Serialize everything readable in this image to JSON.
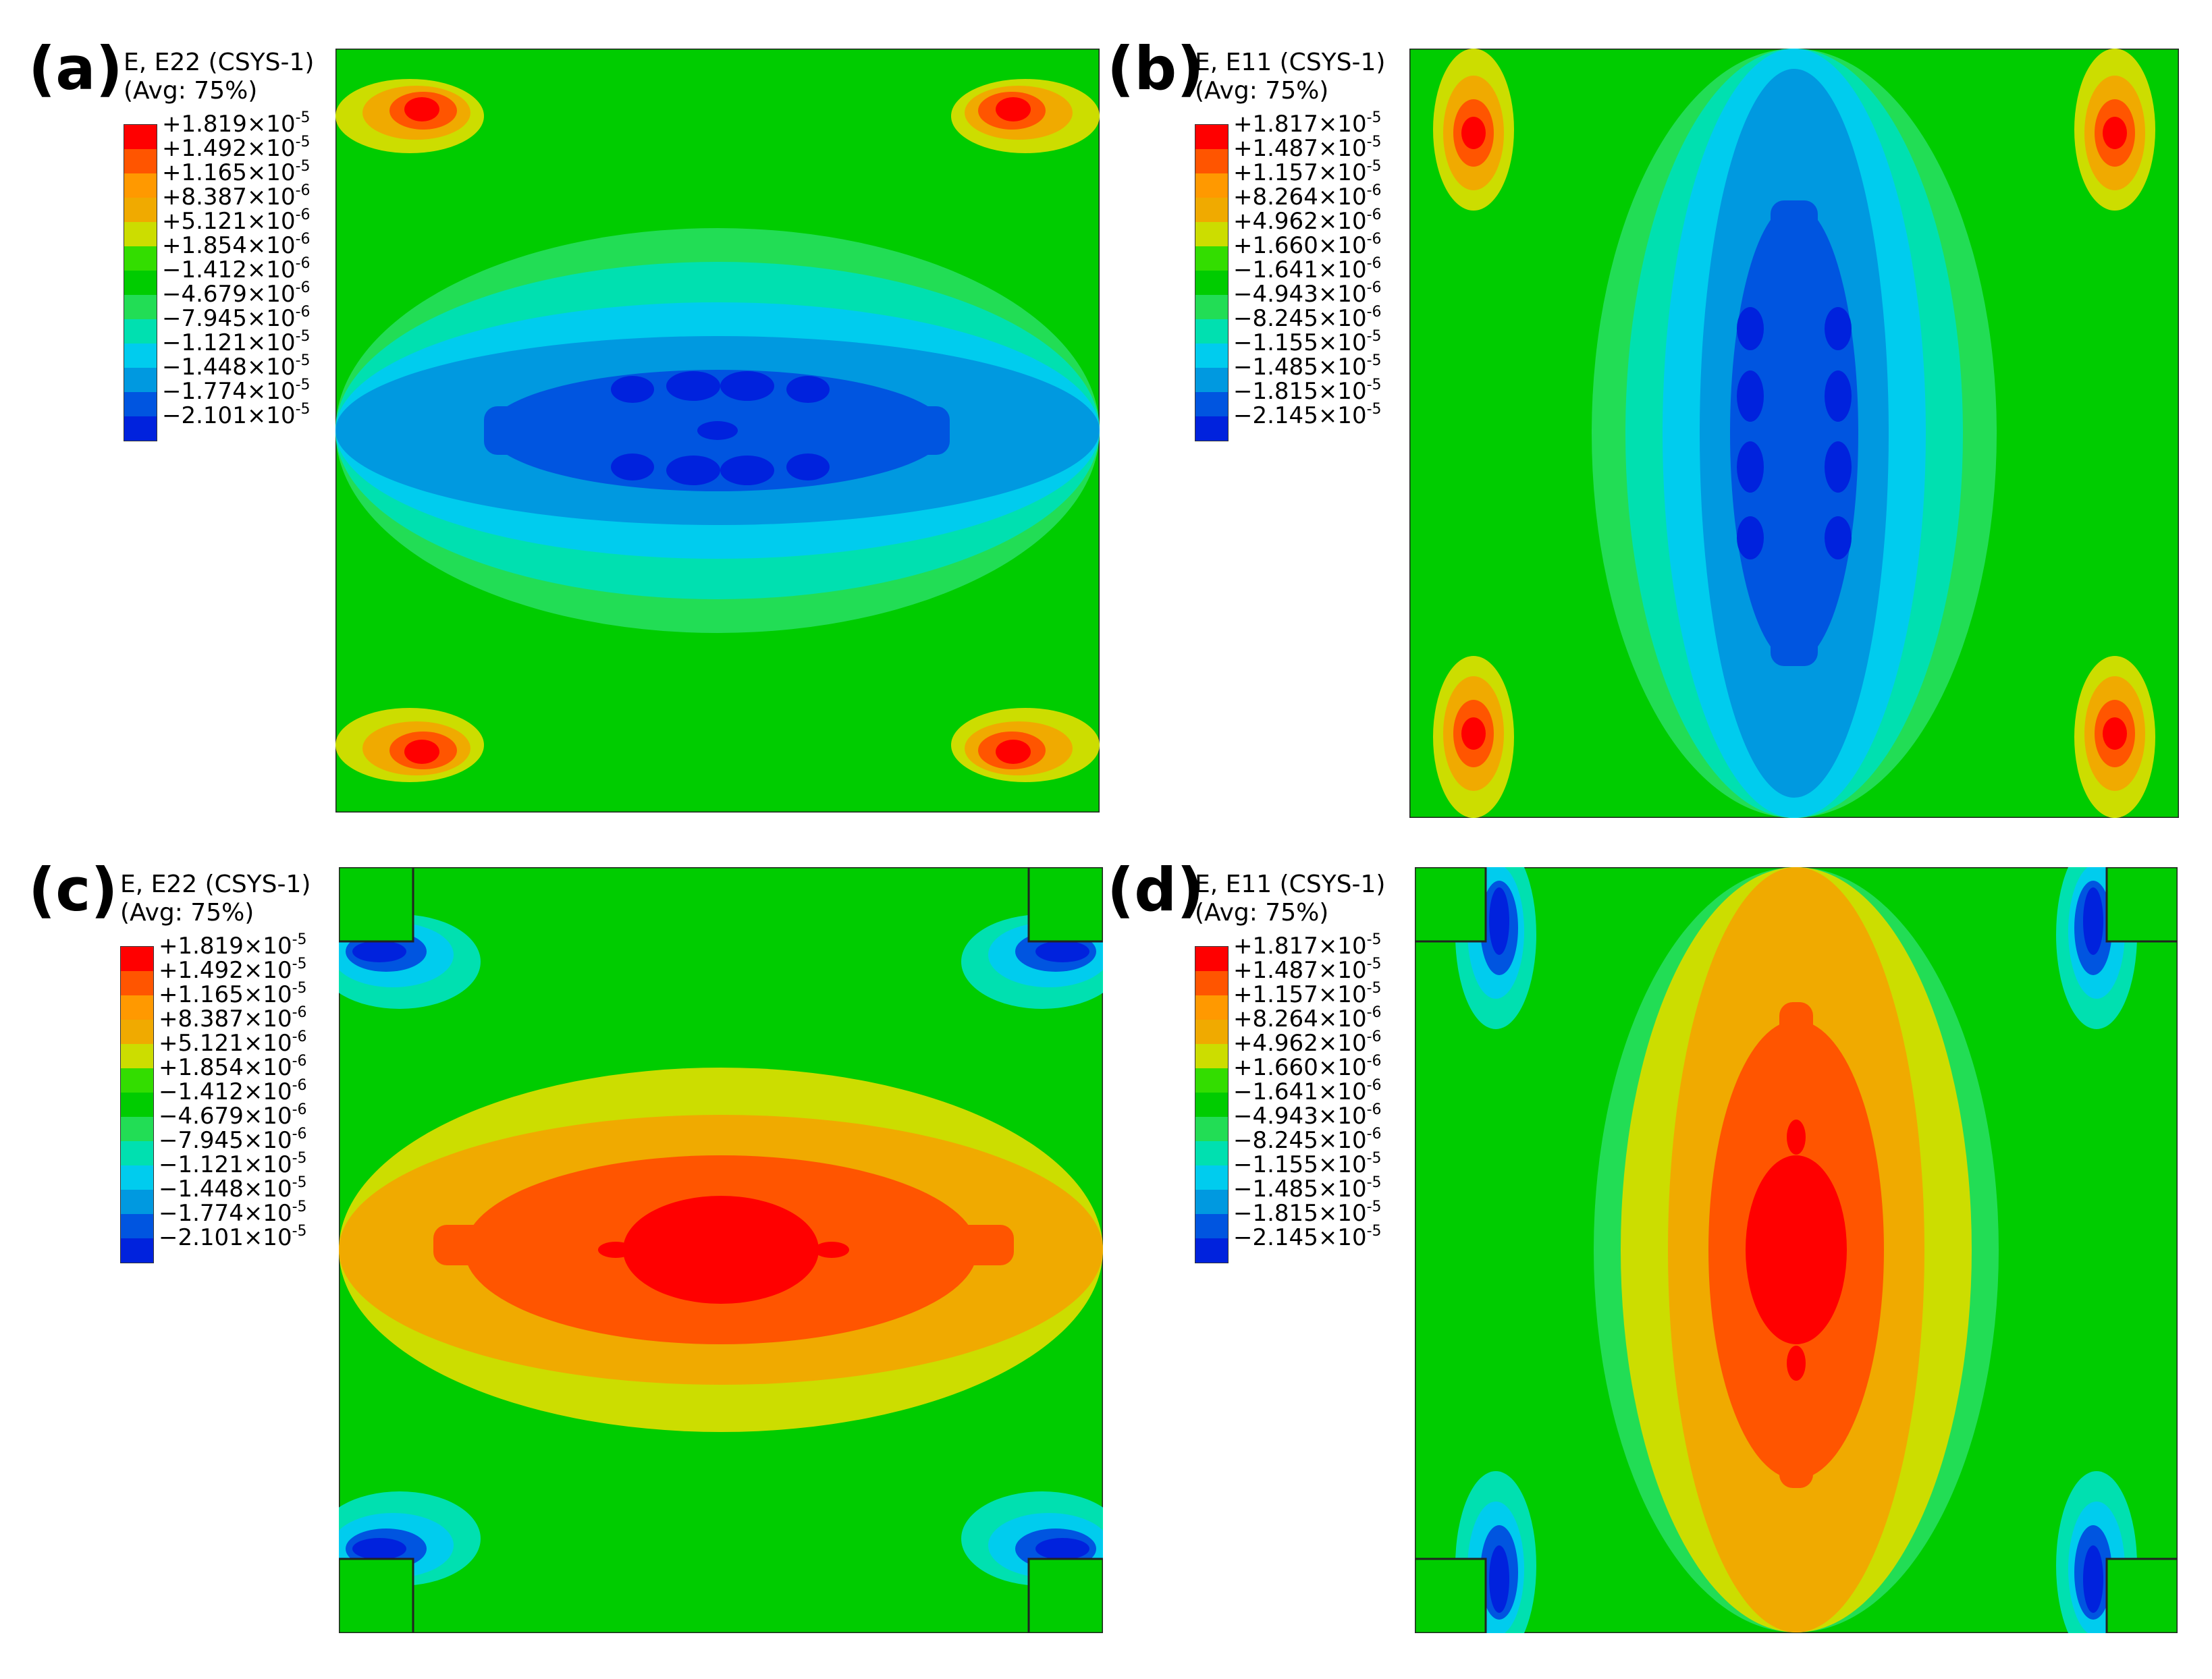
{
  "palette": [
    "#ff0000",
    "#ff5500",
    "#ff9900",
    "#f0aa00",
    "#ccdd00",
    "#33dd00",
    "#00cc00",
    "#22dd55",
    "#00e0b0",
    "#00ccee",
    "#0099e0",
    "#0055e0",
    "#0022dd"
  ],
  "panels": [
    {
      "id": "a",
      "label": "(a)",
      "title_line1": "E, E22 (CSYS-1)",
      "title_line2": "(Avg: 75%)",
      "ticks": [
        {
          "m": "+1.819",
          "e": "-5"
        },
        {
          "m": "+1.492",
          "e": "-5"
        },
        {
          "m": "+1.165",
          "e": "-5"
        },
        {
          "m": "+8.387",
          "e": "-6"
        },
        {
          "m": "+5.121",
          "e": "-6"
        },
        {
          "m": "+1.854",
          "e": "-6"
        },
        {
          "m": "−1.412",
          "e": "-6"
        },
        {
          "m": "−4.679",
          "e": "-6"
        },
        {
          "m": "−7.945",
          "e": "-6"
        },
        {
          "m": "−1.121",
          "e": "-5"
        },
        {
          "m": "−1.448",
          "e": "-5"
        },
        {
          "m": "−1.774",
          "e": "-5"
        },
        {
          "m": "−2.101",
          "e": "-5"
        }
      ]
    },
    {
      "id": "b",
      "label": "(b)",
      "title_line1": "E, E11 (CSYS-1)",
      "title_line2": "(Avg: 75%)",
      "ticks": [
        {
          "m": "+1.817",
          "e": "-5"
        },
        {
          "m": "+1.487",
          "e": "-5"
        },
        {
          "m": "+1.157",
          "e": "-5"
        },
        {
          "m": "+8.264",
          "e": "-6"
        },
        {
          "m": "+4.962",
          "e": "-6"
        },
        {
          "m": "+1.660",
          "e": "-6"
        },
        {
          "m": "−1.641",
          "e": "-6"
        },
        {
          "m": "−4.943",
          "e": "-6"
        },
        {
          "m": "−8.245",
          "e": "-6"
        },
        {
          "m": "−1.155",
          "e": "-5"
        },
        {
          "m": "−1.485",
          "e": "-5"
        },
        {
          "m": "−1.815",
          "e": "-5"
        },
        {
          "m": "−2.145",
          "e": "-5"
        }
      ]
    },
    {
      "id": "c",
      "label": "(c)",
      "title_line1": "E, E22 (CSYS-1)",
      "title_line2": "(Avg: 75%)",
      "ticks": [
        {
          "m": "+1.819",
          "e": "-5"
        },
        {
          "m": "+1.492",
          "e": "-5"
        },
        {
          "m": "+1.165",
          "e": "-5"
        },
        {
          "m": "+8.387",
          "e": "-6"
        },
        {
          "m": "+5.121",
          "e": "-6"
        },
        {
          "m": "+1.854",
          "e": "-6"
        },
        {
          "m": "−1.412",
          "e": "-6"
        },
        {
          "m": "−4.679",
          "e": "-6"
        },
        {
          "m": "−7.945",
          "e": "-6"
        },
        {
          "m": "−1.121",
          "e": "-5"
        },
        {
          "m": "−1.448",
          "e": "-5"
        },
        {
          "m": "−1.774",
          "e": "-5"
        },
        {
          "m": "−2.101",
          "e": "-5"
        }
      ]
    },
    {
      "id": "d",
      "label": "(d)",
      "title_line1": "E, E11 (CSYS-1)",
      "title_line2": "(Avg: 75%)",
      "ticks": [
        {
          "m": "+1.817",
          "e": "-5"
        },
        {
          "m": "+1.487",
          "e": "-5"
        },
        {
          "m": "+1.157",
          "e": "-5"
        },
        {
          "m": "+8.264",
          "e": "-6"
        },
        {
          "m": "+4.962",
          "e": "-6"
        },
        {
          "m": "+1.660",
          "e": "-6"
        },
        {
          "m": "−1.641",
          "e": "-6"
        },
        {
          "m": "−4.943",
          "e": "-6"
        },
        {
          "m": "−8.245",
          "e": "-6"
        },
        {
          "m": "−1.155",
          "e": "-5"
        },
        {
          "m": "−1.485",
          "e": "-5"
        },
        {
          "m": "−1.815",
          "e": "-5"
        },
        {
          "m": "−2.145",
          "e": "-5"
        }
      ]
    }
  ]
}
